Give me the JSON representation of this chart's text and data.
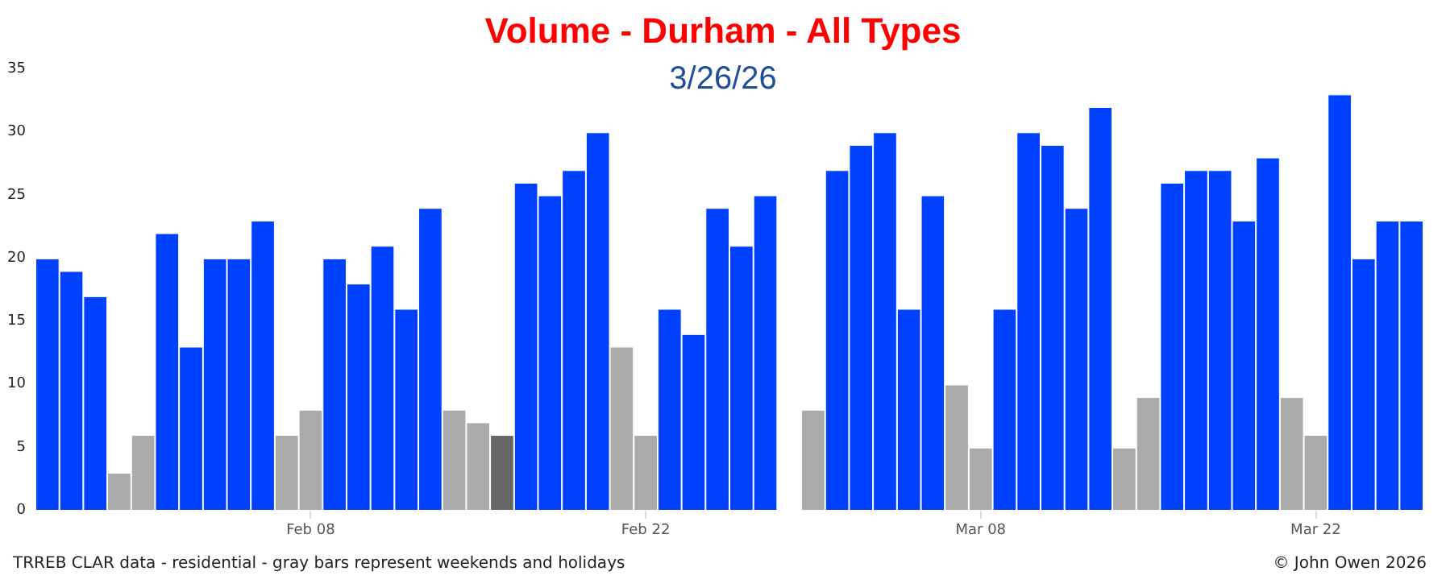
{
  "chart_data": {
    "type": "bar",
    "title": "Volume - Durham - All Types",
    "subtitle": "3/26/26",
    "categories": [
      null,
      null,
      null,
      null,
      null,
      null,
      null,
      null,
      null,
      null,
      null,
      "Feb 08",
      null,
      null,
      null,
      null,
      null,
      null,
      null,
      null,
      null,
      null,
      null,
      null,
      null,
      "Feb 22",
      null,
      null,
      null,
      null,
      null,
      null,
      null,
      null,
      null,
      null,
      null,
      null,
      null,
      "Mar 08",
      null,
      null,
      null,
      null,
      null,
      null,
      null,
      null,
      null,
      null,
      null,
      null,
      null,
      "Mar 22",
      null,
      null,
      null,
      null
    ],
    "values": [
      20,
      19,
      17,
      3,
      6,
      22,
      13,
      20,
      20,
      23,
      6,
      8,
      20,
      18,
      21,
      16,
      24,
      8,
      7,
      6,
      26,
      25,
      27,
      30,
      13,
      6,
      16,
      14,
      24,
      21,
      25,
      null,
      8,
      27,
      29,
      30,
      16,
      25,
      10,
      5,
      16,
      30,
      29,
      24,
      32,
      5,
      9,
      26,
      27,
      27,
      23,
      28,
      9,
      6,
      33,
      20,
      23,
      23
    ],
    "colors": [
      "#0040ff",
      "#0040ff",
      "#0040ff",
      "#aaaaaa",
      "#aaaaaa",
      "#0040ff",
      "#0040ff",
      "#0040ff",
      "#0040ff",
      "#0040ff",
      "#aaaaaa",
      "#aaaaaa",
      "#0040ff",
      "#0040ff",
      "#0040ff",
      "#0040ff",
      "#0040ff",
      "#aaaaaa",
      "#aaaaaa",
      "#666666",
      "#0040ff",
      "#0040ff",
      "#0040ff",
      "#0040ff",
      "#aaaaaa",
      "#aaaaaa",
      "#0040ff",
      "#0040ff",
      "#0040ff",
      "#0040ff",
      "#0040ff",
      null,
      "#aaaaaa",
      "#0040ff",
      "#0040ff",
      "#0040ff",
      "#0040ff",
      "#0040ff",
      "#aaaaaa",
      "#aaaaaa",
      "#0040ff",
      "#0040ff",
      "#0040ff",
      "#0040ff",
      "#0040ff",
      "#aaaaaa",
      "#aaaaaa",
      "#0040ff",
      "#0040ff",
      "#0040ff",
      "#0040ff",
      "#0040ff",
      "#aaaaaa",
      "#aaaaaa",
      "#0040ff",
      "#0040ff",
      "#0040ff",
      "#0040ff"
    ],
    "ylim": [
      0,
      35
    ],
    "yticks": [
      0,
      5,
      10,
      15,
      20,
      25,
      30,
      35
    ],
    "grid": false,
    "annotations": [
      "TRREB CLAR data - residential - gray bars represent weekends and holidays",
      "© John Owen 2026"
    ]
  }
}
